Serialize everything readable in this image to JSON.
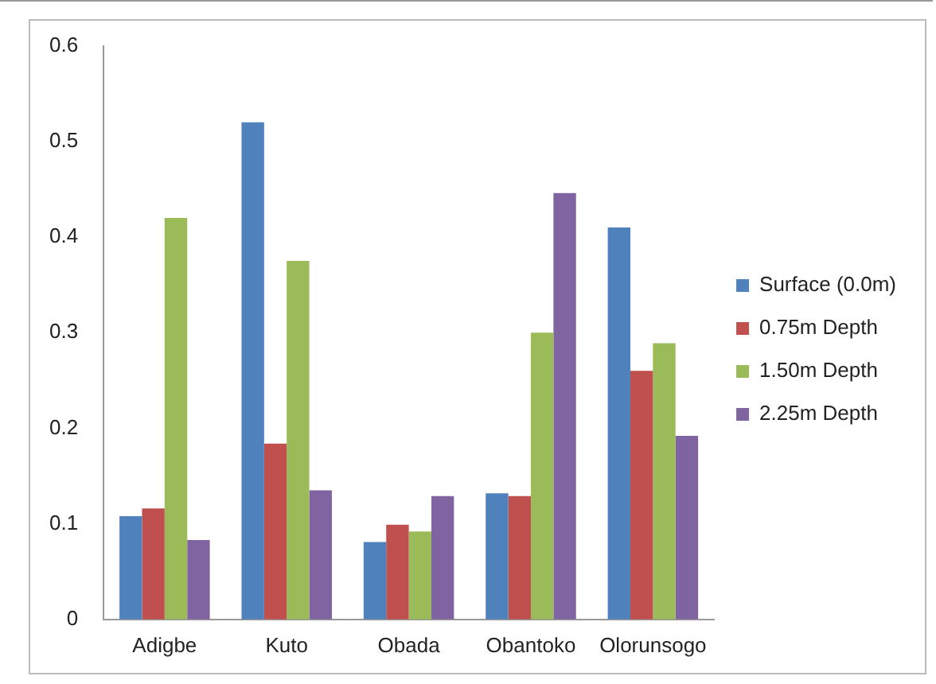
{
  "chart_data": {
    "type": "bar",
    "categories": [
      "Adigbe",
      "Kuto",
      "Obada",
      "Obantoko",
      "Olorunsogo"
    ],
    "series": [
      {
        "name": "Surface (0.0m)",
        "color": "#4f81bd",
        "values": [
          0.108,
          0.52,
          0.081,
          0.132,
          0.41
        ]
      },
      {
        "name": "0.75m Depth",
        "color": "#c0504d",
        "values": [
          0.116,
          0.184,
          0.099,
          0.129,
          0.26
        ]
      },
      {
        "name": "1.50m Depth",
        "color": "#9bbb59",
        "values": [
          0.42,
          0.375,
          0.092,
          0.3,
          0.289
        ]
      },
      {
        "name": "2.25m Depth",
        "color": "#8064a2",
        "values": [
          0.083,
          0.135,
          0.129,
          0.446,
          0.192
        ]
      }
    ],
    "ylim": [
      0,
      0.6
    ],
    "yticks": [
      0,
      0.1,
      0.2,
      0.3,
      0.4,
      0.5,
      0.6
    ],
    "grid": false,
    "legend": "right"
  }
}
